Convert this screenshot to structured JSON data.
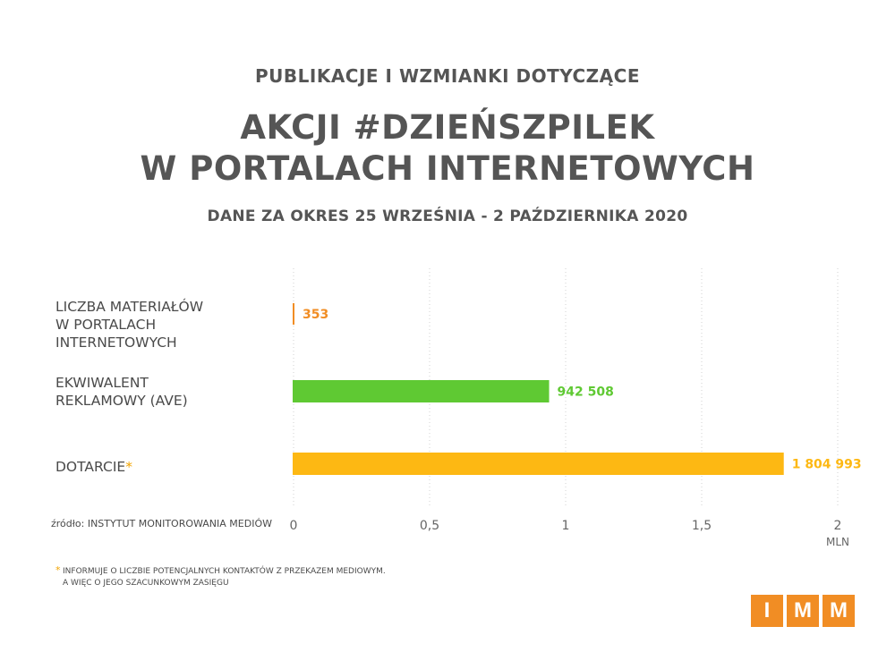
{
  "header": {
    "kicker": "PUBLIKACJE I WZMIANKI DOTYCZĄCE",
    "title_line1": "AKCJI #DZIEŃSZPILEK",
    "title_line2": "W PORTALACH INTERNETOWYCH",
    "subtitle": "DANE ZA OKRES 25 WRZEŚNIA - 2 PAŹDZIERNIKA 2020"
  },
  "chart_data": {
    "type": "bar",
    "orientation": "horizontal",
    "categories": [
      [
        "LICZBA MATERIAŁÓW",
        "W PORTALACH",
        "INTERNETOWYCH"
      ],
      [
        "EKWIWALENT",
        "REKLAMOWY (AVE)"
      ],
      [
        "DOTARCIE"
      ]
    ],
    "values": [
      353,
      942508,
      1804993
    ],
    "value_labels": [
      "353",
      "942 508",
      "1 804 993"
    ],
    "colors": [
      "#f18d24",
      "#5fc933",
      "#fdb813"
    ],
    "xlim": [
      0,
      2000000
    ],
    "xticks": [
      0,
      500000,
      1000000,
      1500000,
      2000000
    ],
    "xtick_labels": [
      "0",
      "0,5",
      "1",
      "1,5",
      "2"
    ],
    "xunit": "MLN",
    "grid": true
  },
  "footer": {
    "source": "źródło: INSTYTUT MONITOROWANIA MEDIÓW",
    "asterisk": "*",
    "note_line1": "INFORMUJE O LICZBIE POTENCJALNYCH KONTAKTÓW Z PRZEKAZEM MEDIOWYM.",
    "note_line2": "A WIĘC O JEGO SZACUNKOWYM ZASIĘGU",
    "logo_letters": [
      "I",
      "M",
      "M"
    ]
  }
}
